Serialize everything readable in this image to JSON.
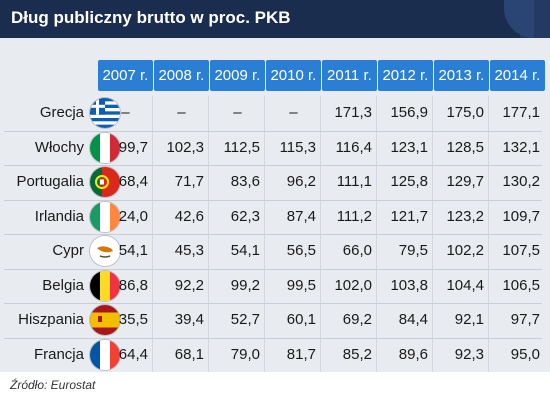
{
  "header": {
    "title": "Dług publiczny brutto w proc. PKB"
  },
  "footer": {
    "source": "Źródło: Eurostat"
  },
  "colors": {
    "title_bar": "#1b2d4f",
    "year_header": "#2a7fd4",
    "band": "#e8ebef"
  },
  "chart_data": {
    "type": "table",
    "title": "Dług publiczny brutto w proc. PKB",
    "columns": [
      "2007 r.",
      "2008 r.",
      "2009 r.",
      "2010 r.",
      "2011 r.",
      "2012 r.",
      "2013 r.",
      "2014 r."
    ],
    "rows": [
      {
        "country": "Grecja",
        "flag": "greece-flag-icon",
        "values": [
          "–",
          "–",
          "–",
          "–",
          "171,3",
          "156,9",
          "175,0",
          "177,1"
        ]
      },
      {
        "country": "Włochy",
        "flag": "italy-flag-icon",
        "values": [
          "99,7",
          "102,3",
          "112,5",
          "115,3",
          "116,4",
          "123,1",
          "128,5",
          "132,1"
        ]
      },
      {
        "country": "Portugalia",
        "flag": "portugal-flag-icon",
        "values": [
          "68,4",
          "71,7",
          "83,6",
          "96,2",
          "111,1",
          "125,8",
          "129,7",
          "130,2"
        ]
      },
      {
        "country": "Irlandia",
        "flag": "ireland-flag-icon",
        "values": [
          "24,0",
          "42,6",
          "62,3",
          "87,4",
          "111,2",
          "121,7",
          "123,2",
          "109,7"
        ]
      },
      {
        "country": "Cypr",
        "flag": "cyprus-flag-icon",
        "values": [
          "54,1",
          "45,3",
          "54,1",
          "56,5",
          "66,0",
          "79,5",
          "102,2",
          "107,5"
        ]
      },
      {
        "country": "Belgia",
        "flag": "belgium-flag-icon",
        "values": [
          "86,8",
          "92,2",
          "99,2",
          "99,5",
          "102,0",
          "103,8",
          "104,4",
          "106,5"
        ]
      },
      {
        "country": "Hiszpania",
        "flag": "spain-flag-icon",
        "values": [
          "35,5",
          "39,4",
          "52,7",
          "60,1",
          "69,2",
          "84,4",
          "92,1",
          "97,7"
        ]
      },
      {
        "country": "Francja",
        "flag": "france-flag-icon",
        "values": [
          "64,4",
          "68,1",
          "79,0",
          "81,7",
          "85,2",
          "89,6",
          "92,3",
          "95,0"
        ]
      }
    ]
  }
}
